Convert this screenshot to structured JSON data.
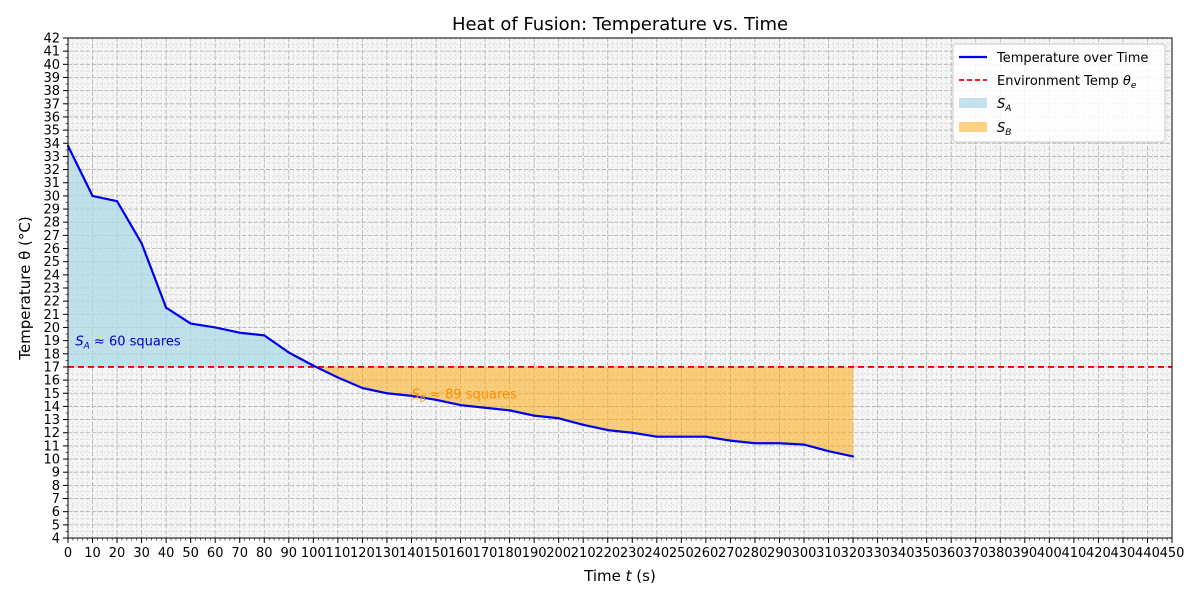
{
  "chart_data": {
    "type": "line",
    "title": "Heat of Fusion: Temperature vs. Time",
    "xlabel": "Time t (s)",
    "ylabel": "Temperature θ (°C)",
    "xlim": [
      0,
      450
    ],
    "ylim": [
      4,
      42
    ],
    "x_major_step": 10,
    "y_major_step": 1,
    "grid": true,
    "legend_position": "top-right",
    "series": [
      {
        "name": "Temperature over Time",
        "color": "#0000ee",
        "x": [
          0,
          10,
          20,
          30,
          40,
          50,
          60,
          70,
          80,
          90,
          100,
          110,
          120,
          130,
          140,
          150,
          160,
          170,
          180,
          190,
          200,
          210,
          220,
          230,
          240,
          250,
          260,
          270,
          280,
          290,
          300,
          310,
          320
        ],
        "y": [
          33.8,
          30.0,
          29.6,
          26.4,
          21.5,
          20.3,
          20.0,
          19.6,
          19.4,
          18.1,
          17.1,
          16.2,
          15.4,
          15.0,
          14.8,
          14.5,
          14.1,
          13.9,
          13.7,
          13.3,
          13.1,
          12.6,
          12.2,
          12.0,
          11.7,
          11.7,
          11.7,
          11.4,
          11.2,
          11.2,
          11.1,
          10.6,
          10.2
        ]
      }
    ],
    "reference_line": {
      "name": "Environment Temp θe",
      "y": 17,
      "color": "#ee0000"
    },
    "regions": [
      {
        "name": "S_A",
        "color": "#add8e6",
        "x_range": [
          0,
          100
        ],
        "annotation": "S_A ≈  60 squares",
        "annotation_color": "#0000cc",
        "annotation_at": [
          3,
          19
        ]
      },
      {
        "name": "S_B",
        "color": "#ffa500",
        "x_range": [
          100,
          320
        ],
        "annotation": "S_B ≈  89 squares",
        "annotation_color": "#ff8c00",
        "annotation_at": [
          140,
          15
        ]
      }
    ]
  }
}
